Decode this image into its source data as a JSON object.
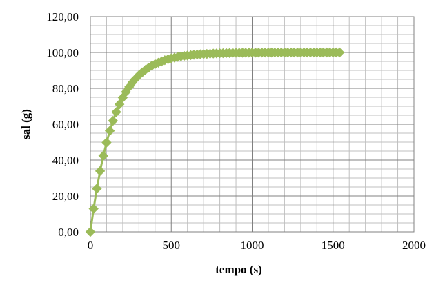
{
  "chart_data": {
    "type": "scatter",
    "xlabel": "tempo (s)",
    "ylabel": "sal (g)",
    "xlim": [
      0,
      2000
    ],
    "ylim": [
      0,
      120
    ],
    "x_ticks": [
      "0",
      "500",
      "1000",
      "1500",
      "2000"
    ],
    "y_ticks": [
      "0,00",
      "20,00",
      "40,00",
      "60,00",
      "80,00",
      "100,00",
      "120,00"
    ],
    "grid": true,
    "legend": "none",
    "series_color": "#9BBB59",
    "series": [
      {
        "x": [
          0,
          20,
          40,
          60,
          80,
          100,
          120,
          140,
          160,
          180,
          200,
          220,
          240,
          260,
          280,
          300,
          320,
          340,
          360,
          380,
          400,
          420,
          440,
          460,
          480,
          500,
          520,
          540,
          560,
          580,
          600,
          620,
          640,
          660,
          680,
          700,
          720,
          740,
          760,
          780,
          800,
          820,
          840,
          860,
          880,
          900,
          920,
          940,
          960,
          980,
          1000,
          1020,
          1040,
          1060,
          1080,
          1100,
          1120,
          1140,
          1160,
          1180,
          1200,
          1220,
          1240,
          1260,
          1280,
          1300,
          1320,
          1340,
          1360,
          1380,
          1400,
          1420,
          1440,
          1460,
          1480,
          1500,
          1520,
          1540
        ],
        "y": [
          0.0,
          12.9,
          24.1,
          33.9,
          42.4,
          49.8,
          56.3,
          61.9,
          66.8,
          71.1,
          74.8,
          78.0,
          80.8,
          83.3,
          85.4,
          87.3,
          88.9,
          90.3,
          91.5,
          92.6,
          93.5,
          94.3,
          95.0,
          95.7,
          96.2,
          96.7,
          97.1,
          97.5,
          97.8,
          98.1,
          98.3,
          98.5,
          98.7,
          98.9,
          99.0,
          99.1,
          99.2,
          99.3,
          99.4,
          99.5,
          99.55,
          99.6,
          99.65,
          99.7,
          99.75,
          99.78,
          99.81,
          99.84,
          99.86,
          99.88,
          99.9,
          99.91,
          99.92,
          99.93,
          99.94,
          99.95,
          99.95,
          99.96,
          99.96,
          99.97,
          99.97,
          99.97,
          99.98,
          99.98,
          99.98,
          99.98,
          99.99,
          99.99,
          99.99,
          99.99,
          99.99,
          99.99,
          99.99,
          100.0,
          100.0,
          100.0,
          100.0,
          100.0
        ]
      }
    ]
  }
}
